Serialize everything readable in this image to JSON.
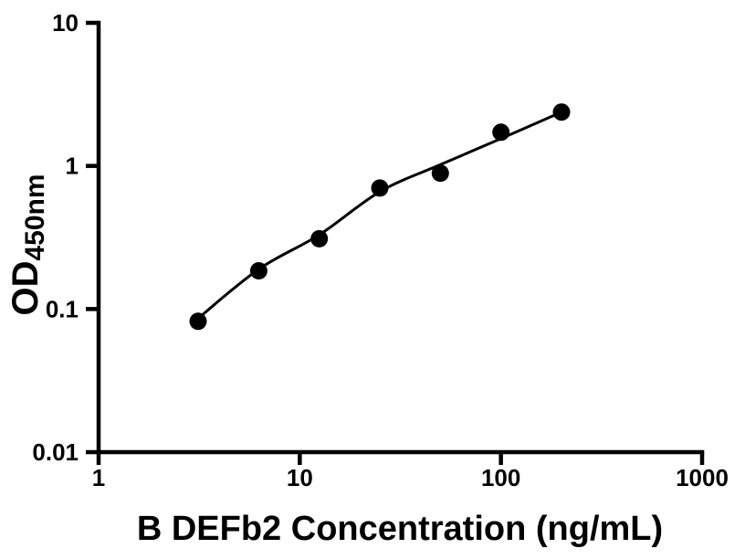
{
  "figure": {
    "background": "#ffffff"
  },
  "chart_data": {
    "type": "scatter",
    "title": "",
    "xlabel": "B DEFb2 Concentration (ng/mL)",
    "ylabel_main": "OD",
    "ylabel_sub": "450nm",
    "xscale": "log",
    "yscale": "log",
    "xlim": [
      1,
      1000
    ],
    "ylim": [
      0.01,
      10
    ],
    "grid": false,
    "legend": "none",
    "marker_color": "#000000",
    "line_color": "#000000",
    "axis_color": "#000000",
    "x_ticks": [
      {
        "value": 1,
        "label": "1"
      },
      {
        "value": 10,
        "label": "10"
      },
      {
        "value": 100,
        "label": "100"
      },
      {
        "value": 1000,
        "label": "1000"
      }
    ],
    "y_ticks": [
      {
        "value": 0.01,
        "label": "0.01"
      },
      {
        "value": 0.1,
        "label": "0.1"
      },
      {
        "value": 1,
        "label": "1"
      },
      {
        "value": 10,
        "label": "10"
      }
    ],
    "points": [
      {
        "x": 3.125,
        "y": 0.082
      },
      {
        "x": 6.25,
        "y": 0.185
      },
      {
        "x": 12.5,
        "y": 0.31
      },
      {
        "x": 25,
        "y": 0.7
      },
      {
        "x": 50,
        "y": 0.89
      },
      {
        "x": 100,
        "y": 1.72
      },
      {
        "x": 200,
        "y": 2.38
      }
    ],
    "fit_curve": [
      {
        "x": 3.125,
        "y": 0.086
      },
      {
        "x": 6.25,
        "y": 0.19
      },
      {
        "x": 12.5,
        "y": 0.33
      },
      {
        "x": 25,
        "y": 0.66
      },
      {
        "x": 50,
        "y": 1.02
      },
      {
        "x": 100,
        "y": 1.55
      },
      {
        "x": 200,
        "y": 2.38
      }
    ]
  }
}
